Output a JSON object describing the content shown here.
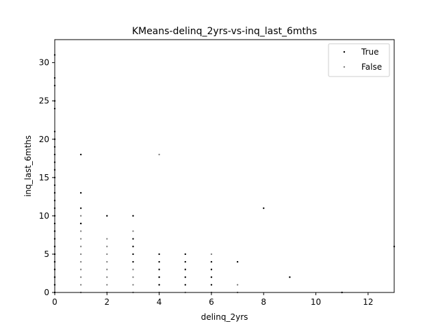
{
  "chart_data": {
    "type": "scatter",
    "title": "KMeans-delinq_2yrs-vs-inq_last_6mths",
    "xlabel": "delinq_2yrs",
    "ylabel": "inq_last_6mths",
    "xlim": [
      0,
      13
    ],
    "ylim": [
      0,
      33
    ],
    "xticks": [
      0,
      2,
      4,
      6,
      8,
      10,
      12
    ],
    "yticks": [
      0,
      5,
      10,
      15,
      20,
      25,
      30
    ],
    "grid": false,
    "legend_position": "top-right",
    "series": [
      {
        "name": "True",
        "color": "#000000",
        "points": [
          [
            0,
            0
          ],
          [
            0,
            1
          ],
          [
            0,
            2
          ],
          [
            0,
            3
          ],
          [
            0,
            4
          ],
          [
            0,
            5
          ],
          [
            0,
            6
          ],
          [
            0,
            7
          ],
          [
            0,
            8
          ],
          [
            0,
            9
          ],
          [
            0,
            10
          ],
          [
            0,
            11
          ],
          [
            0,
            12
          ],
          [
            0,
            13
          ],
          [
            0,
            14
          ],
          [
            0,
            15
          ],
          [
            0,
            16
          ],
          [
            0,
            17
          ],
          [
            0,
            18
          ],
          [
            0,
            19
          ],
          [
            0,
            20
          ],
          [
            0,
            21
          ],
          [
            0,
            24
          ],
          [
            0,
            25
          ],
          [
            0,
            27
          ],
          [
            0,
            28
          ],
          [
            0,
            31
          ],
          [
            1,
            9
          ],
          [
            1,
            11
          ],
          [
            1,
            13
          ],
          [
            1,
            18
          ],
          [
            2,
            10
          ],
          [
            3,
            4
          ],
          [
            3,
            5
          ],
          [
            3,
            6
          ],
          [
            3,
            7
          ],
          [
            3,
            10
          ],
          [
            4,
            1
          ],
          [
            4,
            2
          ],
          [
            4,
            3
          ],
          [
            4,
            4
          ],
          [
            4,
            5
          ],
          [
            5,
            1
          ],
          [
            5,
            2
          ],
          [
            5,
            3
          ],
          [
            5,
            4
          ],
          [
            5,
            5
          ],
          [
            6,
            1
          ],
          [
            6,
            2
          ],
          [
            6,
            3
          ],
          [
            6,
            4
          ],
          [
            7,
            4
          ],
          [
            8,
            11
          ],
          [
            9,
            2
          ],
          [
            11,
            0
          ],
          [
            13,
            6
          ]
        ]
      },
      {
        "name": "False",
        "color": "#808080",
        "points": [
          [
            0,
            0
          ],
          [
            0,
            1
          ],
          [
            0,
            2
          ],
          [
            0,
            3
          ],
          [
            0,
            4
          ],
          [
            0,
            5
          ],
          [
            0,
            6
          ],
          [
            0,
            7
          ],
          [
            0,
            8
          ],
          [
            1,
            0
          ],
          [
            1,
            1
          ],
          [
            1,
            2
          ],
          [
            1,
            3
          ],
          [
            1,
            4
          ],
          [
            1,
            5
          ],
          [
            1,
            6
          ],
          [
            1,
            7
          ],
          [
            1,
            8
          ],
          [
            1,
            9
          ],
          [
            1,
            10
          ],
          [
            2,
            0
          ],
          [
            2,
            1
          ],
          [
            2,
            2
          ],
          [
            2,
            3
          ],
          [
            2,
            4
          ],
          [
            2,
            5
          ],
          [
            2,
            6
          ],
          [
            2,
            7
          ],
          [
            3,
            0
          ],
          [
            3,
            1
          ],
          [
            3,
            2
          ],
          [
            3,
            3
          ],
          [
            3,
            8
          ],
          [
            4,
            0
          ],
          [
            4,
            1
          ],
          [
            4,
            2
          ],
          [
            4,
            18
          ],
          [
            5,
            0
          ],
          [
            6,
            0
          ],
          [
            6,
            5
          ],
          [
            7,
            0
          ],
          [
            7,
            1
          ]
        ]
      }
    ]
  }
}
